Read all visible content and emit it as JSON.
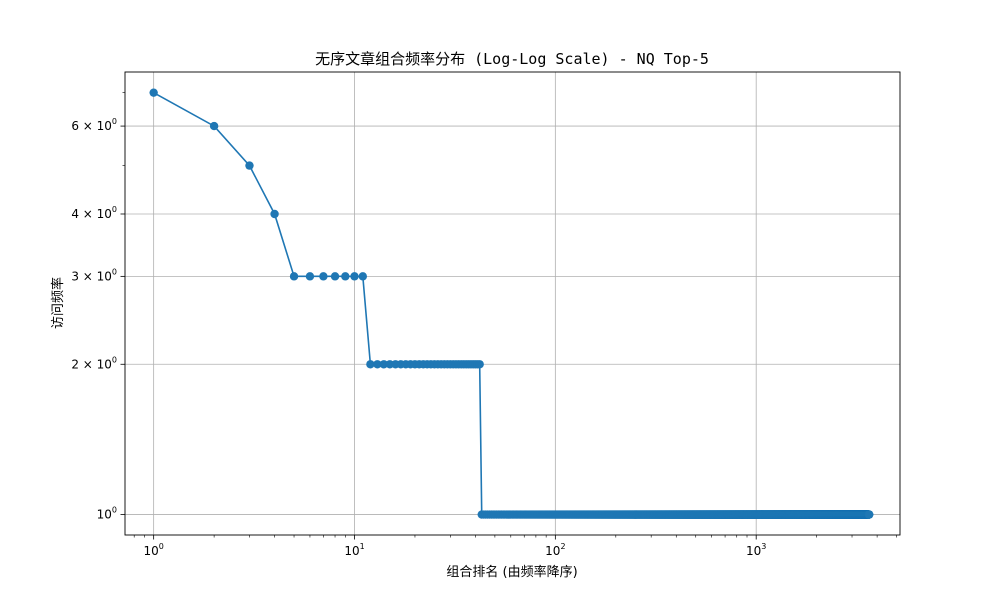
{
  "chart_data": {
    "type": "line",
    "title": "无序文章组合频率分布 (Log-Log Scale) - NQ Top-5",
    "xlabel": "组合排名 (由频率降序)",
    "ylabel": "访问频率",
    "x_scale": "log",
    "y_scale": "log",
    "xlim": [
      0.72,
      5200
    ],
    "ylim": [
      0.91,
      7.7
    ],
    "grid": true,
    "marker": "circle",
    "color": "#1f77b4",
    "x_ticks": [
      {
        "value": 1,
        "base": "10",
        "exp": "0"
      },
      {
        "value": 10,
        "base": "10",
        "exp": "1"
      },
      {
        "value": 100,
        "base": "10",
        "exp": "2"
      },
      {
        "value": 1000,
        "base": "10",
        "exp": "3"
      }
    ],
    "y_ticks": [
      {
        "value": 1,
        "label": "10",
        "exp": "0"
      },
      {
        "value": 2,
        "label": "2 × 10",
        "exp": "0"
      },
      {
        "value": 3,
        "label": "3 × 10",
        "exp": "0"
      },
      {
        "value": 4,
        "label": "4 × 10",
        "exp": "0"
      },
      {
        "value": 6,
        "label": "6 × 10",
        "exp": "0"
      }
    ],
    "series": [
      {
        "segments": [
          {
            "from": 1,
            "to": 1,
            "value": 7
          },
          {
            "from": 2,
            "to": 2,
            "value": 6
          },
          {
            "from": 3,
            "to": 3,
            "value": 5
          },
          {
            "from": 4,
            "to": 4,
            "value": 4
          },
          {
            "from": 5,
            "to": 11,
            "value": 3
          },
          {
            "from": 12,
            "to": 42,
            "value": 2
          },
          {
            "from": 43,
            "to": 3650,
            "value": 1
          }
        ]
      }
    ]
  }
}
